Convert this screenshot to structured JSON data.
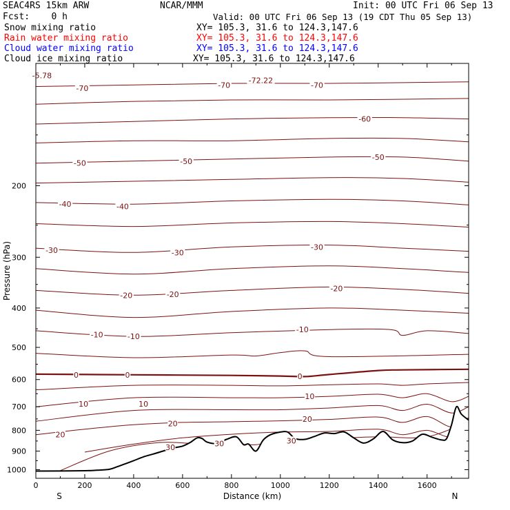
{
  "header": {
    "model": "SEAC4RS 15km ARW",
    "org": "NCAR/MMM",
    "init": "Init: 00 UTC Fri 06 Sep 13",
    "fcst": "Fcst:    0 h",
    "valid": "Valid: 00 UTC Fri 06 Sep 13 (19 CDT Thu 05 Sep 13)",
    "fields": [
      {
        "name": "Snow mixing ratio",
        "xy": "XY= 105.3, 31.6 to 124.3,147.6",
        "color": "#000000"
      },
      {
        "name": "Rain water mixing ratio",
        "xy": "XY= 105.3, 31.6 to 124.3,147.6",
        "color": "#ff0000"
      },
      {
        "name": "Cloud water mixing ratio",
        "xy": "XY= 105.3, 31.6 to 124.3,147.6",
        "color": "#0000ff"
      },
      {
        "name": "Cloud ice mixing ratio",
        "xy": "XY= 105.3, 31.6 to 124.3,147.6",
        "color": "#000000"
      }
    ]
  },
  "chart_data": {
    "type": "line",
    "subtype": "vertical cross-section contour plot",
    "xlabel": "Distance (km)",
    "ylabel": "Pressure (hPa)",
    "xlim": [
      0,
      1770
    ],
    "ylim": [
      1050,
      100
    ],
    "y_scale": "log",
    "x_ticks": [
      0,
      200,
      400,
      600,
      800,
      1000,
      1200,
      1400,
      1600
    ],
    "x_tick_labels": [
      "0",
      "200",
      "400",
      "600",
      "800",
      "1000",
      "1200",
      "1400",
      "1600"
    ],
    "y_ticks": [
      200,
      300,
      400,
      500,
      600,
      700,
      800,
      900,
      1000
    ],
    "y_tick_labels": [
      "200",
      "300",
      "400",
      "500",
      "600",
      "700",
      "800",
      "900",
      "1000"
    ],
    "endpoint_labels": {
      "left": "S",
      "right": "N"
    },
    "contour_interval": 5,
    "contour_color": "#7a1010",
    "contours": [
      {
        "level": -70,
        "x": [
          0,
          400,
          800,
          1200,
          1770
        ],
        "p": [
          114,
          113,
          112,
          112,
          111
        ]
      },
      {
        "level": -65,
        "x": [
          0,
          400,
          800,
          1200,
          1770
        ],
        "p": [
          126,
          124,
          123,
          123,
          122
        ]
      },
      {
        "level": -60,
        "x": [
          0,
          400,
          800,
          1200,
          1500,
          1770
        ],
        "p": [
          141,
          139,
          137,
          136,
          136,
          137
        ]
      },
      {
        "level": -55,
        "x": [
          0,
          400,
          800,
          1200,
          1500,
          1770
        ],
        "p": [
          157,
          155,
          155,
          153,
          153,
          156
        ]
      },
      {
        "level": -50,
        "x": [
          0,
          400,
          800,
          1200,
          1500,
          1770
        ],
        "p": [
          176,
          174,
          172,
          170,
          170,
          174
        ]
      },
      {
        "level": -45,
        "x": [
          0,
          400,
          800,
          1200,
          1500,
          1770
        ],
        "p": [
          197,
          195,
          193,
          191,
          192,
          196
        ]
      },
      {
        "level": -40,
        "x": [
          0,
          400,
          800,
          1200,
          1500,
          1770
        ],
        "p": [
          220,
          222,
          218,
          216,
          218,
          223
        ]
      },
      {
        "level": -35,
        "x": [
          0,
          400,
          800,
          1200,
          1500,
          1770
        ],
        "p": [
          248,
          252,
          247,
          245,
          248,
          253
        ]
      },
      {
        "level": -30,
        "x": [
          0,
          400,
          800,
          1200,
          1500,
          1770
        ],
        "p": [
          285,
          292,
          283,
          280,
          285,
          290
        ]
      },
      {
        "level": -25,
        "x": [
          0,
          400,
          800,
          1200,
          1500,
          1770
        ],
        "p": [
          320,
          330,
          320,
          315,
          320,
          327
        ]
      },
      {
        "level": -20,
        "x": [
          0,
          400,
          800,
          1200,
          1500,
          1770
        ],
        "p": [
          362,
          372,
          362,
          355,
          360,
          368
        ]
      },
      {
        "level": -15,
        "x": [
          0,
          400,
          800,
          1200,
          1500,
          1770
        ],
        "p": [
          405,
          422,
          408,
          400,
          405,
          412
        ]
      },
      {
        "level": -10,
        "x": [
          0,
          400,
          800,
          1200,
          1450,
          1500,
          1600,
          1770
        ],
        "p": [
          455,
          470,
          460,
          452,
          452,
          467,
          455,
          462
        ]
      },
      {
        "level": -5,
        "x": [
          0,
          400,
          800,
          900,
          1000,
          1100,
          1200,
          1770
        ],
        "p": [
          517,
          530,
          522,
          525,
          515,
          510,
          527,
          520
        ]
      },
      {
        "level": 0,
        "x": [
          0,
          400,
          800,
          1000,
          1100,
          1200,
          1400,
          1500,
          1770
        ],
        "p": [
          582,
          584,
          586,
          588,
          590,
          583,
          570,
          568,
          566
        ]
      },
      {
        "level": 5,
        "x": [
          0,
          400,
          800,
          1000,
          1200,
          1400,
          1500,
          1600,
          1770
        ],
        "p": [
          636,
          620,
          620,
          622,
          618,
          615,
          620,
          615,
          610
        ]
      },
      {
        "level": 10,
        "x": [
          0,
          400,
          800,
          1000,
          1200,
          1400,
          1500,
          1600,
          1700,
          1770
        ],
        "p": [
          700,
          665,
          665,
          665,
          660,
          652,
          665,
          650,
          680,
          660
        ]
      },
      {
        "level": 15,
        "x": [
          0,
          400,
          800,
          1000,
          1200,
          1400,
          1500,
          1600,
          1700,
          1770
        ],
        "p": [
          760,
          715,
          712,
          712,
          705,
          695,
          715,
          690,
          725,
          700
        ]
      },
      {
        "level": 20,
        "x": [
          0,
          200,
          400,
          600,
          800,
          1000,
          1200,
          1400,
          1500,
          1600,
          1700,
          1770
        ],
        "p": [
          820,
          795,
          775,
          765,
          762,
          758,
          752,
          742,
          765,
          740,
          785,
          745
        ]
      },
      {
        "level": 25,
        "x": [
          200,
          400,
          600,
          800,
          1000,
          1200,
          1400,
          1500,
          1600,
          1700,
          1770
        ],
        "p": [
          905,
          865,
          835,
          818,
          808,
          805,
          795,
          820,
          800,
          830,
          760
        ]
      },
      {
        "level": 30,
        "x": [
          100,
          300,
          500,
          650,
          800,
          900,
          1000,
          1100,
          1200,
          1400,
          1600,
          1770
        ],
        "p": [
          1005,
          900,
          858,
          862,
          862,
          868,
          845,
          852,
          840,
          830,
          830,
          760
        ]
      }
    ],
    "contour_labels": [
      {
        "text": "-5.78",
        "x": 25,
        "p": 107
      },
      {
        "text": "-70",
        "x": 190,
        "p": 115
      },
      {
        "text": "-70",
        "x": 770,
        "p": 113
      },
      {
        "text": "-72.22",
        "x": 920,
        "p": 110
      },
      {
        "text": "-70",
        "x": 1150,
        "p": 113
      },
      {
        "text": "-60",
        "x": 1345,
        "p": 137
      },
      {
        "text": "-50",
        "x": 180,
        "p": 176
      },
      {
        "text": "-50",
        "x": 615,
        "p": 174
      },
      {
        "text": "-50",
        "x": 1400,
        "p": 170
      },
      {
        "text": "-40",
        "x": 120,
        "p": 222
      },
      {
        "text": "-40",
        "x": 355,
        "p": 225
      },
      {
        "text": "-30",
        "x": 65,
        "p": 288
      },
      {
        "text": "-30",
        "x": 580,
        "p": 292
      },
      {
        "text": "-30",
        "x": 1150,
        "p": 283
      },
      {
        "text": "-20",
        "x": 370,
        "p": 372
      },
      {
        "text": "-20",
        "x": 560,
        "p": 370
      },
      {
        "text": "-20",
        "x": 1230,
        "p": 358
      },
      {
        "text": "-10",
        "x": 250,
        "p": 465
      },
      {
        "text": "-10",
        "x": 400,
        "p": 470
      },
      {
        "text": "-10",
        "x": 1090,
        "p": 452
      },
      {
        "text": "0",
        "x": 165,
        "p": 584
      },
      {
        "text": "0",
        "x": 375,
        "p": 584
      },
      {
        "text": "0",
        "x": 1080,
        "p": 589
      },
      {
        "text": "10",
        "x": 195,
        "p": 688
      },
      {
        "text": "10",
        "x": 440,
        "p": 688
      },
      {
        "text": "10",
        "x": 1120,
        "p": 660
      },
      {
        "text": "20",
        "x": 100,
        "p": 820
      },
      {
        "text": "20",
        "x": 560,
        "p": 770
      },
      {
        "text": "20",
        "x": 1110,
        "p": 750
      },
      {
        "text": "30",
        "x": 550,
        "p": 880
      },
      {
        "text": "30",
        "x": 750,
        "p": 862
      },
      {
        "text": "30",
        "x": 1045,
        "p": 848
      }
    ],
    "terrain": {
      "x": [
        0,
        200,
        250,
        300,
        330,
        360,
        400,
        440,
        480,
        520,
        560,
        600,
        630,
        660,
        680,
        700,
        740,
        780,
        820,
        850,
        870,
        900,
        930,
        960,
        1000,
        1030,
        1060,
        1100,
        1140,
        1180,
        1220,
        1260,
        1300,
        1340,
        1380,
        1420,
        1460,
        1500,
        1540,
        1580,
        1620,
        1660,
        1680,
        1700,
        1720,
        1740,
        1770
      ],
      "p": [
        1008,
        1006,
        1003,
        998,
        985,
        970,
        950,
        930,
        915,
        900,
        885,
        875,
        858,
        835,
        838,
        855,
        862,
        842,
        830,
        868,
        865,
        900,
        845,
        820,
        808,
        808,
        838,
        842,
        828,
        812,
        815,
        807,
        835,
        860,
        840,
        805,
        845,
        858,
        850,
        818,
        832,
        845,
        838,
        775,
        700,
        730,
        755
      ]
    }
  }
}
